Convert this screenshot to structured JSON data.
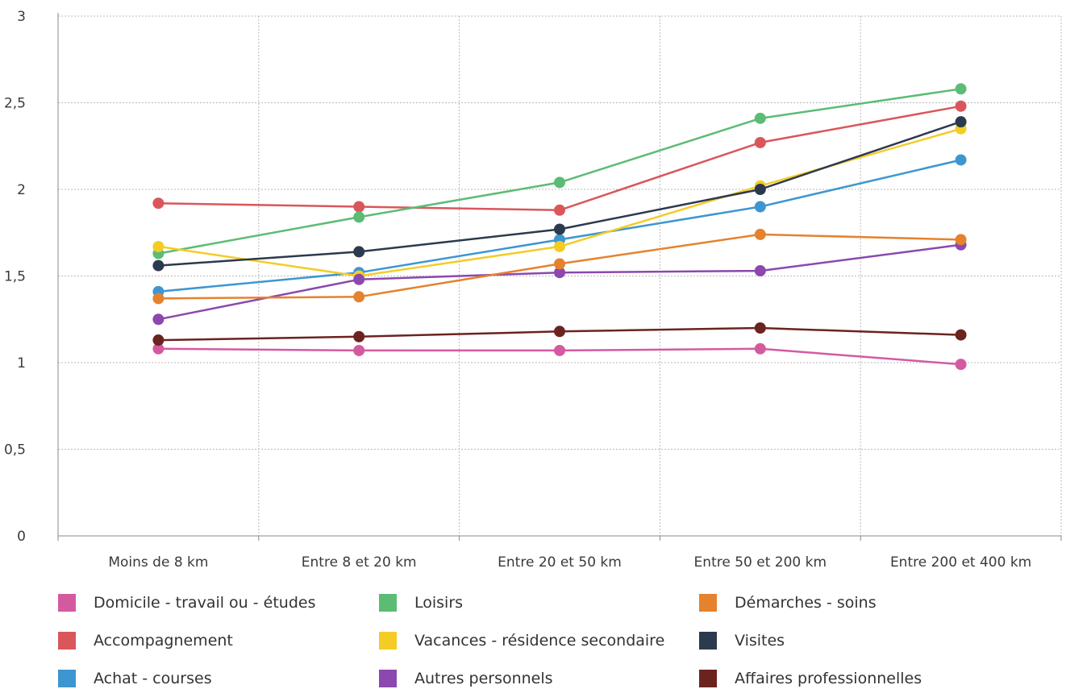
{
  "chart_data": {
    "type": "line",
    "title": "",
    "xlabel": "",
    "ylabel": "",
    "categories": [
      "Moins de 8 km",
      "Entre 8 et 20 km",
      "Entre 20 et 50 km",
      "Entre 50 et 200 km",
      "Entre 200 et 400 km"
    ],
    "ylim": [
      0,
      3
    ],
    "yticks": [
      {
        "value": 0,
        "label": "0"
      },
      {
        "value": 0.5,
        "label": "0,5"
      },
      {
        "value": 1,
        "label": "1"
      },
      {
        "value": 1.5,
        "label": "1,5"
      },
      {
        "value": 2,
        "label": "2"
      },
      {
        "value": 2.5,
        "label": "2,5"
      },
      {
        "value": 3,
        "label": "3"
      }
    ],
    "grid": true,
    "legend_position": "bottom",
    "series": [
      {
        "name": "Domicile - travail ou - études",
        "color": "#d45aa0",
        "values": [
          1.08,
          1.07,
          1.07,
          1.08,
          0.99
        ]
      },
      {
        "name": "Accompagnement",
        "color": "#d9575b",
        "values": [
          1.92,
          1.9,
          1.88,
          2.27,
          2.48
        ]
      },
      {
        "name": "Achat - courses",
        "color": "#3d96d0",
        "values": [
          1.41,
          1.52,
          1.71,
          1.9,
          2.17
        ]
      },
      {
        "name": "Loisirs",
        "color": "#5cbc74",
        "values": [
          1.63,
          1.84,
          2.04,
          2.41,
          2.58
        ]
      },
      {
        "name": "Vacances - résidence secondaire",
        "color": "#f4cc26",
        "values": [
          1.67,
          1.5,
          1.67,
          2.02,
          2.35
        ]
      },
      {
        "name": "Autres personnels",
        "color": "#8b48ae",
        "values": [
          1.25,
          1.48,
          1.52,
          1.53,
          1.68
        ]
      },
      {
        "name": "Démarches - soins",
        "color": "#e5822e",
        "values": [
          1.37,
          1.38,
          1.57,
          1.74,
          1.71
        ]
      },
      {
        "name": "Visites",
        "color": "#2b3a4e",
        "values": [
          1.56,
          1.64,
          1.77,
          2.0,
          2.39
        ]
      },
      {
        "name": "Affaires professionnelles",
        "color": "#6b2320",
        "values": [
          1.13,
          1.15,
          1.18,
          1.2,
          1.16
        ]
      }
    ]
  }
}
